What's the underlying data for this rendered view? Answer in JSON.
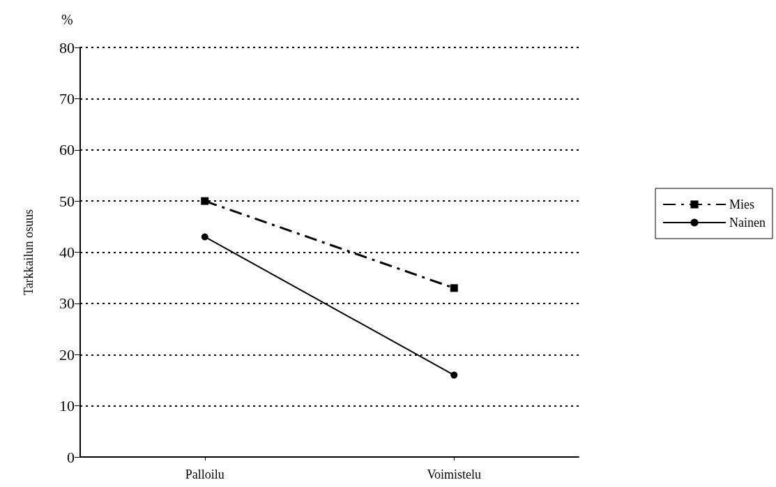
{
  "chart_data": {
    "type": "line",
    "ylabel": "Tarkkailun osuus",
    "annotations": [
      "%"
    ],
    "categories": [
      "Palloilu",
      "Voimistelu"
    ],
    "series": [
      {
        "name": "Mies",
        "color": "#000000",
        "values": [
          50,
          33
        ],
        "marker": "square",
        "line_style": "dashed"
      },
      {
        "name": "Nainen",
        "color": "#000000",
        "values": [
          43,
          16
        ],
        "marker": "circle",
        "line_style": "solid"
      }
    ],
    "ylim": [
      0,
      80
    ],
    "yticks": [
      0,
      10,
      20,
      30,
      40,
      50,
      60,
      70,
      80
    ],
    "grid": "y",
    "legend": "right"
  }
}
